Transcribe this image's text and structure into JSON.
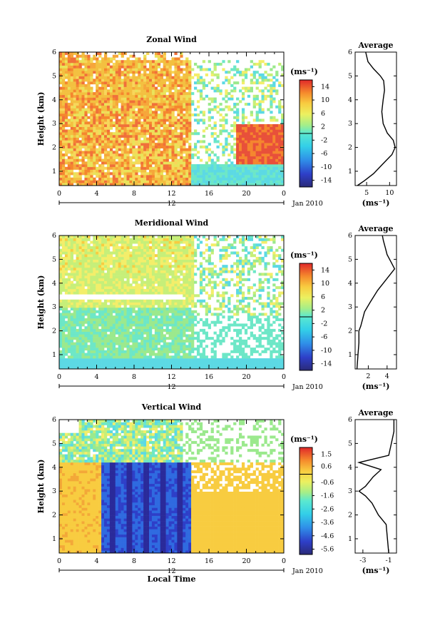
{
  "chart_data": [
    {
      "type": "heatmap",
      "title": "Zonal Wind",
      "ylabel": "Height (km)",
      "xticks": [
        "0",
        "4",
        "8",
        "12",
        "16",
        "20",
        "0"
      ],
      "yticks": [
        "1",
        "2",
        "3",
        "4",
        "5",
        "6"
      ],
      "xlim": [
        0,
        24
      ],
      "ylim": [
        0.4,
        6
      ],
      "date_marker": "12",
      "date_label": "Jan 2010",
      "colorbar": {
        "unit": "(ms⁻¹)",
        "ticks": [
          "14",
          "10",
          "6",
          "2",
          "-2",
          "-6",
          "-10",
          "-14"
        ],
        "range": [
          -16,
          16
        ]
      },
      "profile": {
        "title": "Average",
        "xticks": [
          "5",
          "10"
        ],
        "xlim": [
          2.5,
          11.5
        ],
        "xlabel": "(ms⁻¹)",
        "points": [
          [
            3.0,
            0.4
          ],
          [
            4.5,
            0.6
          ],
          [
            6.5,
            0.9
          ],
          [
            8.5,
            1.3
          ],
          [
            10.5,
            1.7
          ],
          [
            11.2,
            2.0
          ],
          [
            10.8,
            2.3
          ],
          [
            9.5,
            2.6
          ],
          [
            8.6,
            3.0
          ],
          [
            8.3,
            3.5
          ],
          [
            8.6,
            4.0
          ],
          [
            8.9,
            4.4
          ],
          [
            8.7,
            4.8
          ],
          [
            8.0,
            5.0
          ],
          [
            6.5,
            5.3
          ],
          [
            5.3,
            5.6
          ],
          [
            4.8,
            6.0
          ]
        ]
      }
    },
    {
      "type": "heatmap",
      "title": "Meridional Wind",
      "ylabel": "Height (km)",
      "xticks": [
        "0",
        "4",
        "8",
        "12",
        "16",
        "20",
        "0"
      ],
      "yticks": [
        "1",
        "2",
        "3",
        "4",
        "5",
        "6"
      ],
      "xlim": [
        0,
        24
      ],
      "ylim": [
        0.4,
        6
      ],
      "date_marker": "12",
      "date_label": "Jan 2010",
      "colorbar": {
        "unit": "(ms⁻¹)",
        "ticks": [
          "14",
          "10",
          "6",
          "2",
          "-2",
          "-6",
          "-10",
          "-14"
        ],
        "range": [
          -16,
          16
        ]
      },
      "profile": {
        "title": "Average",
        "xticks": [
          "2",
          "4"
        ],
        "xlim": [
          0.6,
          5.0
        ],
        "xlabel": "(ms⁻¹)",
        "points": [
          [
            0.8,
            0.4
          ],
          [
            0.9,
            1.0
          ],
          [
            1.0,
            1.5
          ],
          [
            1.0,
            2.0
          ],
          [
            1.2,
            2.2
          ],
          [
            1.6,
            2.8
          ],
          [
            2.2,
            3.2
          ],
          [
            3.0,
            3.7
          ],
          [
            3.8,
            4.1
          ],
          [
            4.4,
            4.4
          ],
          [
            4.8,
            4.6
          ],
          [
            4.4,
            4.9
          ],
          [
            4.0,
            5.2
          ],
          [
            3.8,
            5.5
          ],
          [
            3.6,
            5.8
          ],
          [
            3.5,
            6.0
          ]
        ]
      }
    },
    {
      "type": "heatmap",
      "title": "Vertical Wind",
      "ylabel": "Height (km)",
      "xlabel": "Local Time",
      "xticks": [
        "0",
        "4",
        "8",
        "12",
        "16",
        "20",
        "0"
      ],
      "yticks": [
        "1",
        "2",
        "3",
        "4",
        "5",
        "6"
      ],
      "xlim": [
        0,
        24
      ],
      "ylim": [
        0.4,
        6
      ],
      "date_marker": "12",
      "date_label": "Jan 2010",
      "colorbar": {
        "unit": "(ms⁻¹)",
        "ticks": [
          "1.5",
          "0.6",
          "-0.6",
          "-1.6",
          "-2.6",
          "-3.6",
          "-4.6",
          "-5.6"
        ],
        "range": [
          -6,
          2
        ]
      },
      "profile": {
        "title": "Average",
        "xticks": [
          "-3",
          "-1"
        ],
        "xlim": [
          -3.6,
          -0.4
        ],
        "xlabel": "(ms⁻¹)",
        "points": [
          [
            -1.0,
            0.4
          ],
          [
            -1.1,
            1.0
          ],
          [
            -1.2,
            1.6
          ],
          [
            -1.8,
            2.0
          ],
          [
            -2.3,
            2.5
          ],
          [
            -2.8,
            2.8
          ],
          [
            -3.3,
            3.0
          ],
          [
            -2.8,
            3.2
          ],
          [
            -2.2,
            3.6
          ],
          [
            -1.6,
            3.9
          ],
          [
            -3.3,
            4.2
          ],
          [
            -1.0,
            4.5
          ],
          [
            -0.8,
            5.0
          ],
          [
            -0.6,
            5.5
          ],
          [
            -0.6,
            6.0
          ]
        ]
      }
    }
  ]
}
